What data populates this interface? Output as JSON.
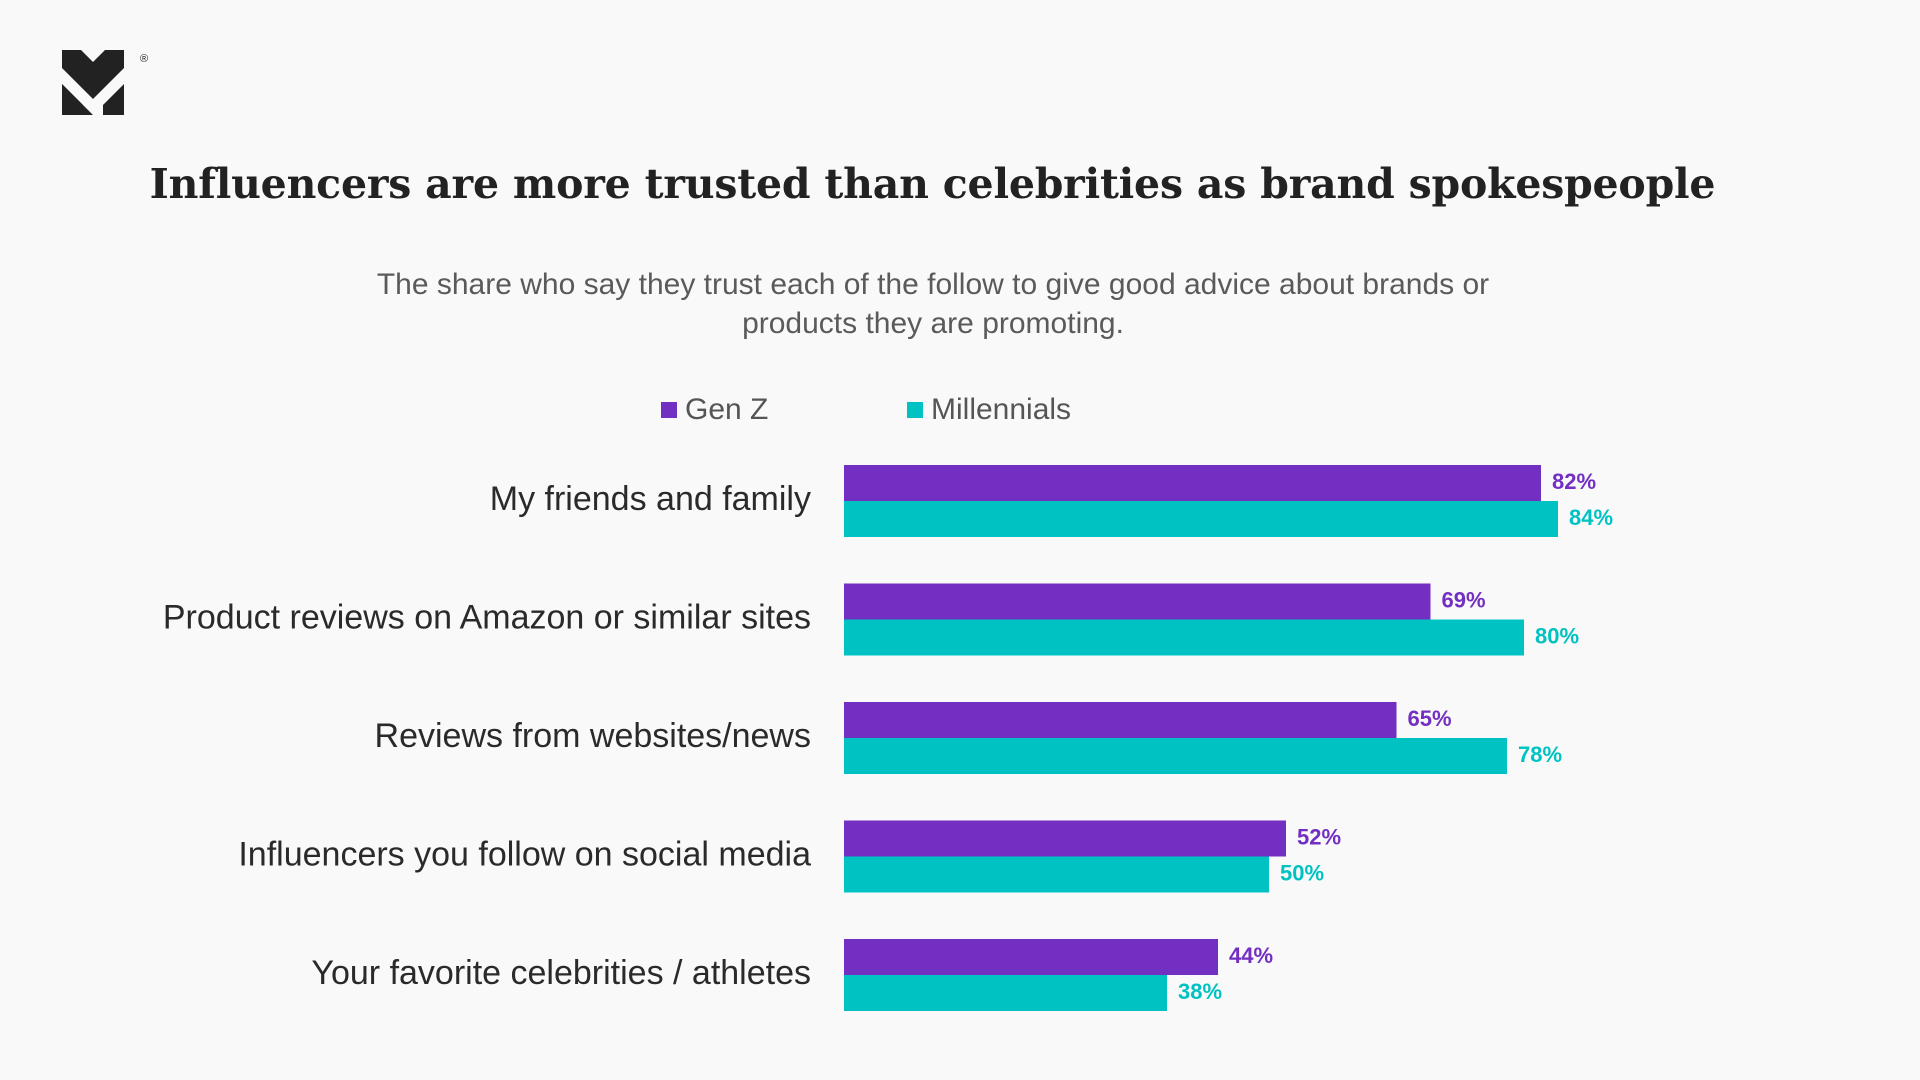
{
  "header": {
    "logo_icon": "m-chevron-logo-icon",
    "logo_mark": "®"
  },
  "colors": {
    "gen_z": "#722fc1",
    "millennials": "#00c2c2",
    "logo": "#222222"
  },
  "chart_data": {
    "type": "bar",
    "orientation": "horizontal",
    "title": "Influencers are more trusted than celebrities as brand spokespeople",
    "subtitle": "The share who say they trust each of the follow to give good advice about brands or products they are promoting.",
    "categories": [
      "My friends and family",
      "Product reviews on Amazon or similar sites",
      "Reviews from websites/news",
      "Influencers you follow on social media",
      "Your favorite celebrities / athletes"
    ],
    "series": [
      {
        "name": "Gen Z",
        "values": [
          82,
          69,
          65,
          52,
          44
        ],
        "labels": [
          "82%",
          "69%",
          "65%",
          "52%",
          "44%"
        ]
      },
      {
        "name": "Millennials",
        "values": [
          84,
          80,
          78,
          50,
          38
        ],
        "labels": [
          "84%",
          "80%",
          "78%",
          "50%",
          "38%"
        ]
      }
    ],
    "xlim": [
      0,
      100
    ],
    "grid": false,
    "legend_position": "top"
  }
}
